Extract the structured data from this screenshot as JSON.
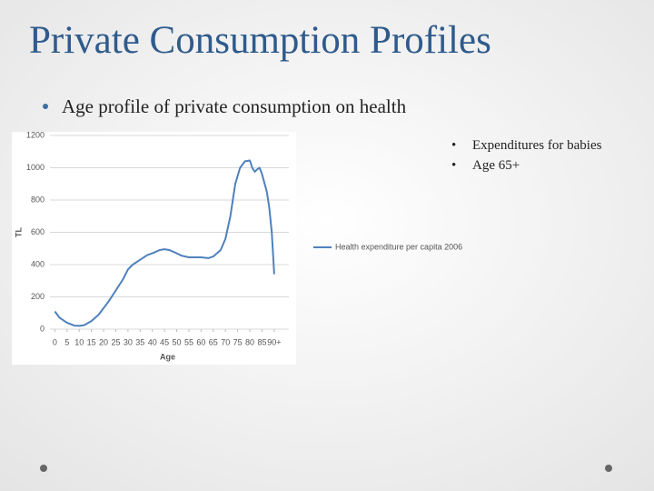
{
  "slide": {
    "title": "Private Consumption Profiles",
    "bullet": "Age profile of private consumption on health",
    "notes": [
      "Expenditures  for babies",
      "Age 65+"
    ]
  },
  "chart_data": {
    "type": "line",
    "x": [
      0,
      2,
      5,
      8,
      10,
      12,
      15,
      18,
      20,
      22,
      25,
      28,
      30,
      32,
      35,
      38,
      40,
      43,
      45,
      47,
      50,
      52,
      55,
      58,
      60,
      63,
      65,
      68,
      70,
      72,
      74,
      76,
      78,
      80,
      81,
      82,
      83,
      84,
      85,
      87,
      88,
      89,
      90
    ],
    "series": [
      {
        "name": "Health expenditure per capita 2006",
        "color": "#4f81bd",
        "values": [
          110,
          70,
          40,
          22,
          20,
          25,
          50,
          90,
          130,
          170,
          240,
          310,
          370,
          400,
          430,
          460,
          470,
          490,
          495,
          490,
          470,
          455,
          445,
          445,
          445,
          440,
          450,
          490,
          560,
          700,
          900,
          1000,
          1040,
          1045,
          1000,
          975,
          990,
          1000,
          960,
          850,
          750,
          600,
          340
        ]
      }
    ],
    "xlabel": "Age",
    "ylabel": "TL",
    "xlim": [
      -2,
      96
    ],
    "ylim": [
      0,
      1200
    ],
    "xticks": [
      0,
      5,
      10,
      15,
      20,
      25,
      30,
      35,
      40,
      45,
      50,
      55,
      60,
      65,
      70,
      75,
      80,
      85,
      {
        "value": 90,
        "label": "90+"
      }
    ],
    "yticks": [
      0,
      200,
      400,
      600,
      800,
      1000,
      1200
    ],
    "grid": true,
    "legend": "right"
  }
}
